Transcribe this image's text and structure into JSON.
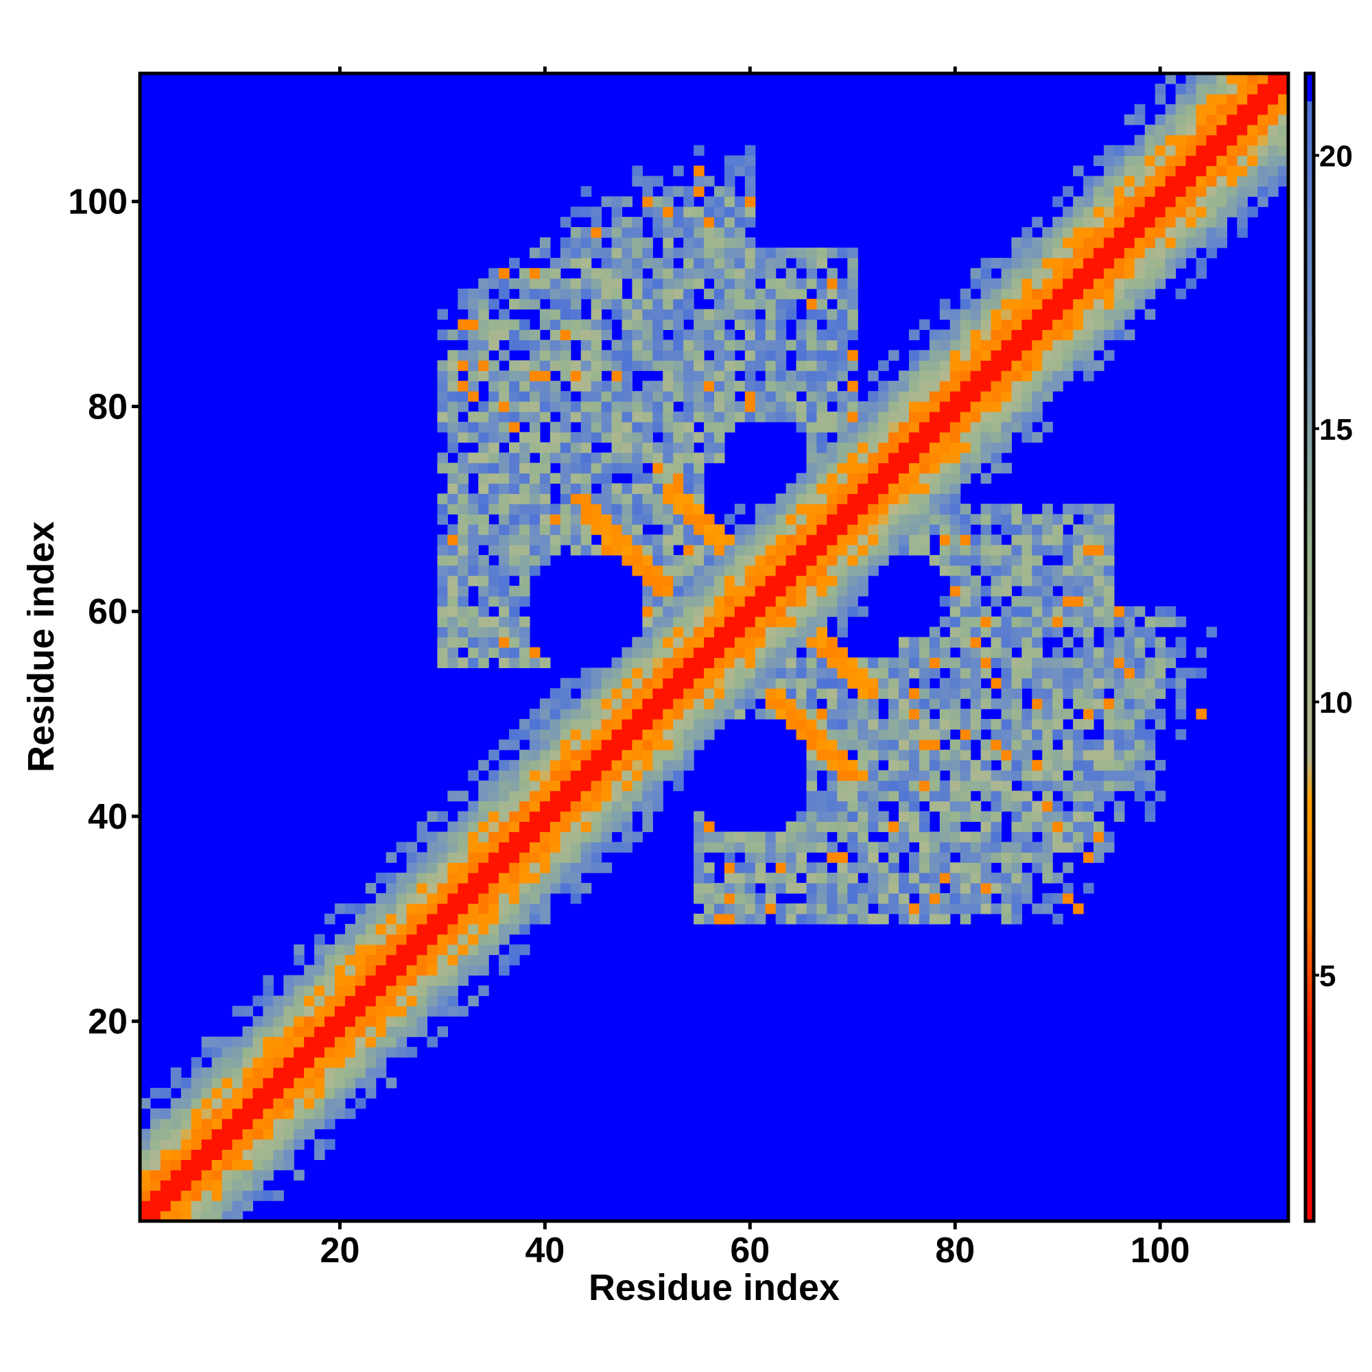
{
  "chart_data": {
    "type": "heatmap",
    "title": "",
    "xlabel": "Residue index",
    "ylabel": "Residue index",
    "xlim": [
      0.5,
      112.5
    ],
    "ylim": [
      0.5,
      112.5
    ],
    "matrix_size": 112,
    "x_ticks": [
      20,
      40,
      60,
      80,
      100
    ],
    "y_ticks": [
      20,
      40,
      60,
      80,
      100
    ],
    "x_tick_labels": [
      "20",
      "40",
      "60",
      "80",
      "100"
    ],
    "y_tick_labels": [
      "20",
      "40",
      "60",
      "80",
      "100"
    ],
    "colorbar": {
      "range": [
        0.5,
        21.5
      ],
      "ticks": [
        5,
        10,
        15,
        20
      ],
      "tick_labels": [
        "5",
        "10",
        "15",
        "20"
      ],
      "saturated_color": "#0000ff"
    },
    "value_cutoff": 21,
    "color_stops": [
      {
        "value": 0.5,
        "color": "#ff0000"
      },
      {
        "value": 4.0,
        "color": "#ff1a00"
      },
      {
        "value": 6.0,
        "color": "#ff7a00"
      },
      {
        "value": 8.2,
        "color": "#ffa000"
      },
      {
        "value": 9.0,
        "color": "#b4b890"
      },
      {
        "value": 13.0,
        "color": "#98b490"
      },
      {
        "value": 17.0,
        "color": "#6f8fc4"
      },
      {
        "value": 21.0,
        "color": "#4f74d6"
      }
    ],
    "features": {
      "diagonal_band": "distance < 4 at |i-j| <= 1, orange (~6-7) at |i-j| = 2..3, green (9-14) up to |i-j| ~ 8",
      "antiparallel_contacts": [
        {
          "i_range": [
            52,
            62
          ],
          "j_range": [
            62,
            72
          ],
          "anti_sum": 124,
          "distance": 6.5
        },
        {
          "i_range": [
            62,
            72
          ],
          "j_range": [
            44,
            52
          ],
          "anti_sum": 114,
          "distance": 6.5
        }
      ],
      "off_diagonal_blocks": [
        {
          "residues_i": [
            30,
            55
          ],
          "residues_j": [
            55,
            85
          ],
          "distance_range": [
            9,
            21
          ]
        },
        {
          "residues_i": [
            55,
            95
          ],
          "residues_j": [
            30,
            55
          ],
          "distance_range": [
            9,
            21
          ]
        },
        {
          "residues_i": [
            40,
            60
          ],
          "residues_j": [
            85,
            105
          ],
          "distance_range": [
            10,
            21
          ]
        },
        {
          "residues_i": [
            75,
            95
          ],
          "residues_j": [
            48,
            70
          ],
          "distance_range": [
            10,
            21
          ]
        }
      ],
      "empty_pockets": [
        {
          "center": [
            44,
            60
          ],
          "radius": 6
        },
        {
          "center": [
            75,
            61
          ],
          "radius": 4
        },
        {
          "center": [
            60,
            44
          ],
          "radius": 5
        },
        {
          "center": [
            62,
            75
          ],
          "radius": 4
        }
      ]
    }
  }
}
